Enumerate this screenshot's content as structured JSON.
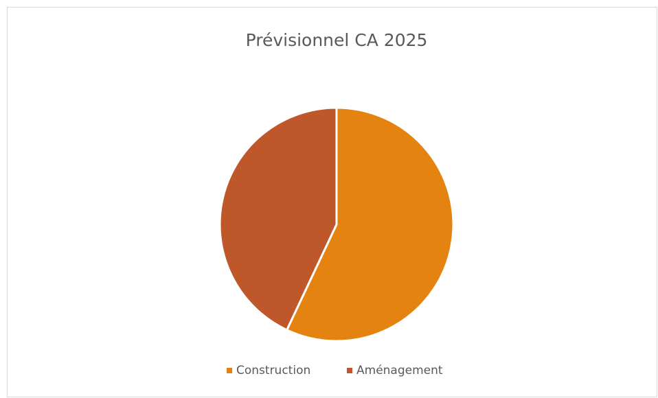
{
  "chart_data": {
    "type": "pie",
    "title": "Prévisionnel CA 2025",
    "categories": [
      "Construction",
      "Aménagement"
    ],
    "values": [
      57,
      43
    ],
    "colors": [
      "#E58311",
      "#BE582B"
    ]
  }
}
